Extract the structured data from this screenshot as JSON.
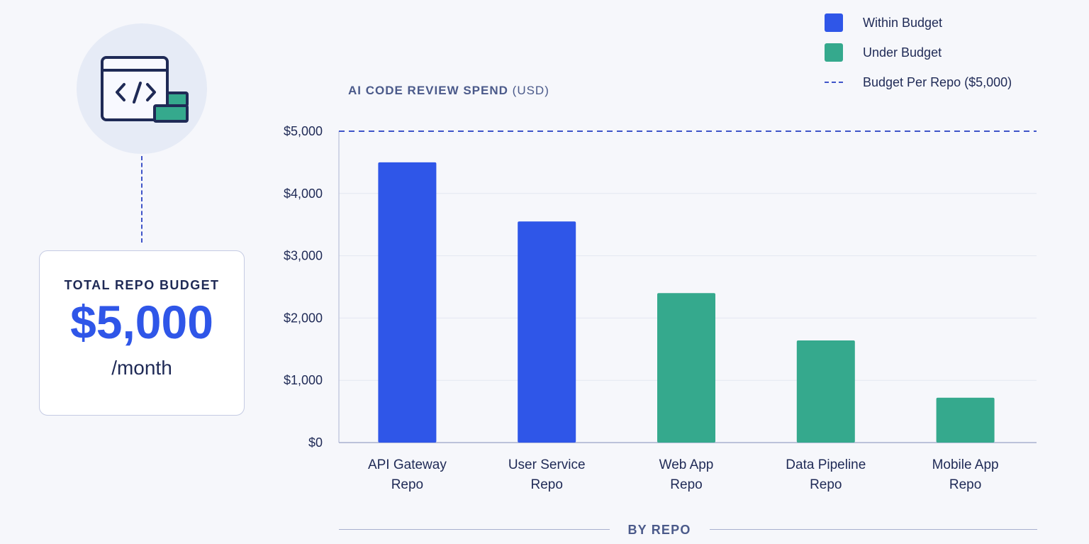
{
  "card": {
    "label": "TOTAL REPO BUDGET",
    "value": "$5,000",
    "unit": "/month"
  },
  "legend": {
    "within": "Within Budget",
    "under": "Under Budget",
    "line": "Budget Per Repo ($5,000)"
  },
  "colors": {
    "within": "#2f56e8",
    "under": "#35a98d",
    "budget_line": "#3f54c9",
    "text": "#1f2a56"
  },
  "chart_data": {
    "type": "bar",
    "title": "AI CODE REVIEW SPEND",
    "title_unit": "(USD)",
    "xlabel": "BY REPO",
    "ylabel": "",
    "ylim": [
      0,
      5000
    ],
    "yticks": [
      0,
      1000,
      2000,
      3000,
      4000,
      5000
    ],
    "ytick_labels": [
      "$0",
      "$1,000",
      "$2,000",
      "$3,000",
      "$4,000",
      "$5,000"
    ],
    "grid": true,
    "legend_position": "top-right",
    "budget_line_value": 5000,
    "categories": [
      [
        "API Gateway",
        "Repo"
      ],
      [
        "User Service",
        "Repo"
      ],
      [
        "Web App",
        "Repo"
      ],
      [
        "Data Pipeline",
        "Repo"
      ],
      [
        "Mobile App",
        "Repo"
      ]
    ],
    "values": [
      4500,
      3550,
      2400,
      1640,
      720
    ],
    "status": [
      "within",
      "within",
      "under",
      "under",
      "under"
    ]
  }
}
